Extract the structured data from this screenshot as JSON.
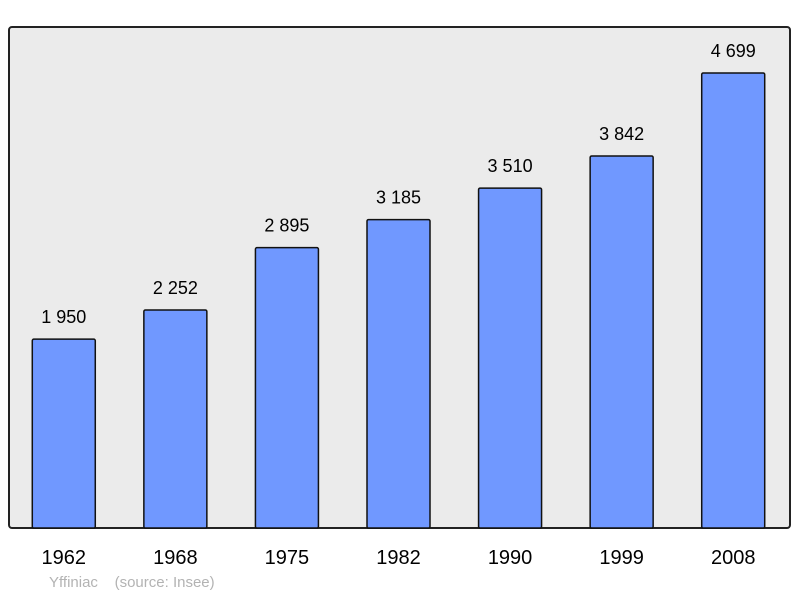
{
  "chart_data": {
    "type": "bar",
    "categories": [
      "1962",
      "1968",
      "1975",
      "1982",
      "1990",
      "1999",
      "2008"
    ],
    "values": [
      1950,
      2252,
      2895,
      3185,
      3510,
      3842,
      4699
    ],
    "data_labels": [
      "1 950",
      "2 252",
      "2 895",
      "3 185",
      "3 510",
      "3 842",
      "4 699"
    ],
    "title": "",
    "xlabel": "",
    "ylabel": "",
    "ylim": [
      0,
      5174
    ],
    "grid": false,
    "bar_color": "#7098ff",
    "plot_background": "#ebebeb"
  },
  "footer": {
    "place": "Yffiniac",
    "source": "(source: Insee)"
  }
}
